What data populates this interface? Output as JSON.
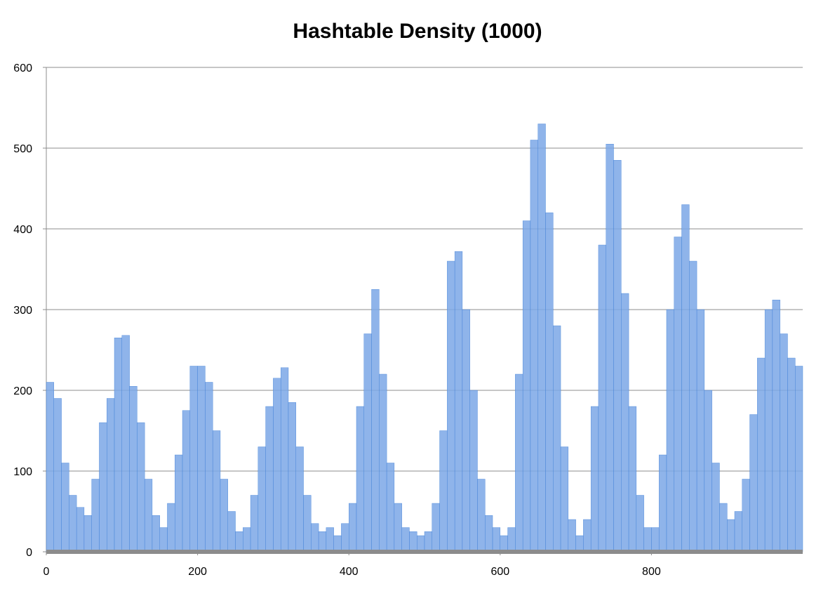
{
  "chart_data": {
    "type": "bar",
    "title": "Hashtable Density (1000)",
    "xlabel": "",
    "ylabel": "",
    "xlim": [
      0,
      1000
    ],
    "ylim": [
      0,
      600
    ],
    "grid": true,
    "x_ticks": [
      0,
      200,
      400,
      600,
      800
    ],
    "y_ticks": [
      0,
      100,
      200,
      300,
      400,
      500,
      600
    ],
    "bar_color": "#7ba7e6",
    "bar_edge_color": "#3f7fd6",
    "baseline_color": "#8c8c8c",
    "x": [
      0,
      10,
      20,
      30,
      40,
      50,
      60,
      70,
      80,
      90,
      100,
      110,
      120,
      130,
      140,
      150,
      160,
      170,
      180,
      190,
      200,
      210,
      220,
      230,
      240,
      250,
      260,
      270,
      280,
      290,
      300,
      310,
      320,
      330,
      340,
      350,
      360,
      370,
      380,
      390,
      400,
      410,
      420,
      430,
      440,
      450,
      460,
      470,
      480,
      490,
      500,
      510,
      520,
      530,
      540,
      550,
      560,
      570,
      580,
      590,
      600,
      610,
      620,
      630,
      640,
      650,
      660,
      670,
      680,
      690,
      700,
      710,
      720,
      730,
      740,
      750,
      760,
      770,
      780,
      790,
      800,
      810,
      820,
      830,
      840,
      850,
      860,
      870,
      880,
      890,
      900,
      910,
      920,
      930,
      940,
      950,
      960,
      970,
      980,
      990
    ],
    "values": [
      210,
      190,
      110,
      70,
      55,
      45,
      90,
      160,
      190,
      265,
      268,
      205,
      160,
      90,
      45,
      30,
      60,
      120,
      175,
      230,
      230,
      210,
      150,
      90,
      50,
      25,
      30,
      70,
      130,
      180,
      215,
      228,
      185,
      130,
      70,
      35,
      25,
      30,
      20,
      35,
      60,
      180,
      270,
      325,
      220,
      110,
      60,
      30,
      25,
      20,
      25,
      60,
      150,
      360,
      372,
      300,
      200,
      90,
      45,
      30,
      20,
      30,
      220,
      410,
      510,
      530,
      420,
      280,
      130,
      40,
      20,
      40,
      180,
      380,
      505,
      485,
      320,
      180,
      70,
      30,
      30,
      120,
      300,
      390,
      430,
      360,
      300,
      200,
      110,
      60,
      40,
      50,
      90,
      170,
      240,
      300,
      312,
      270,
      240,
      230
    ]
  }
}
